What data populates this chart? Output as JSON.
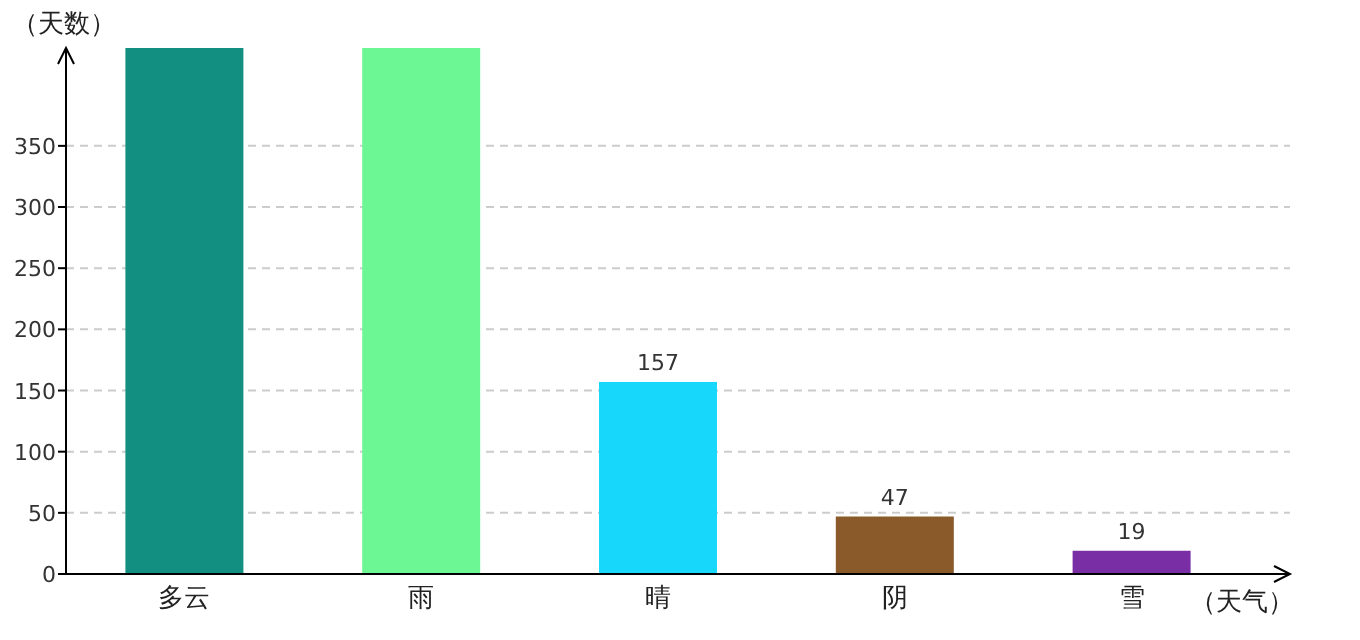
{
  "chart_data": {
    "type": "bar",
    "xlabel": "（天气）",
    "ylabel": "（天数）",
    "categories": [
      "多云",
      "雨",
      "晴",
      "阴",
      "雪"
    ],
    "values": [
      430,
      430,
      157,
      47,
      19
    ],
    "value_labels": [
      null,
      null,
      "157",
      "47",
      "19"
    ],
    "colors": [
      "#138f82",
      "#6cf794",
      "#17d7fb",
      "#8b5a2b",
      "#7a2ea6"
    ],
    "ylim": [
      0,
      430
    ],
    "yticks": [
      0,
      50,
      100,
      150,
      200,
      250,
      300,
      350
    ],
    "grid": "y"
  }
}
